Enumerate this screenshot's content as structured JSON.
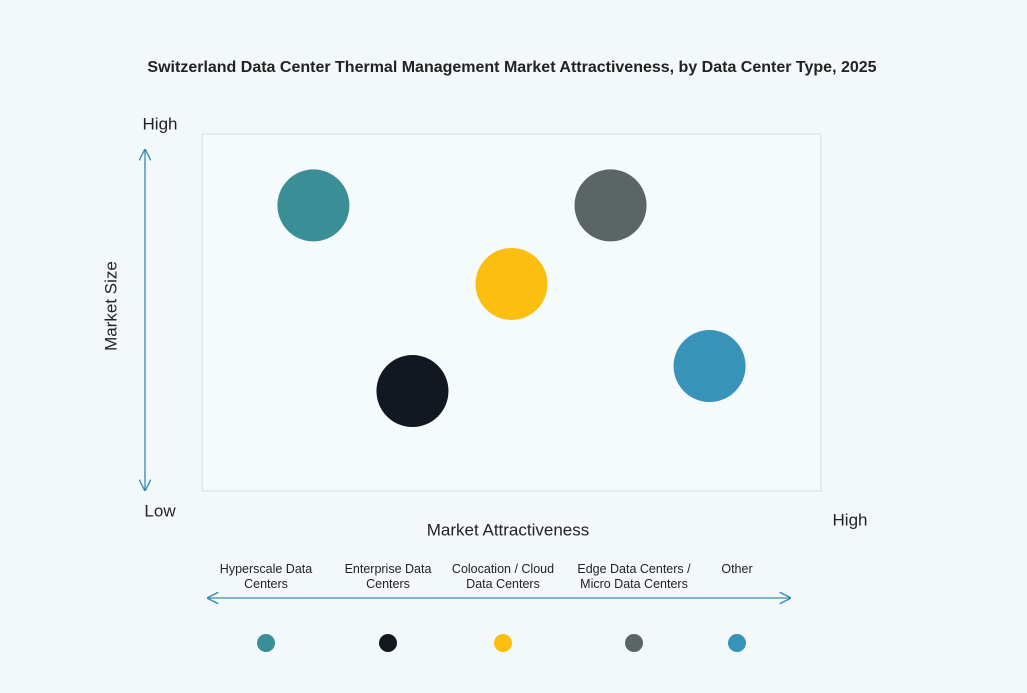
{
  "chart_data": {
    "type": "scatter",
    "title": "Switzerland Data Center Thermal Management Market Attractiveness,  by Data Center Type, 2025",
    "xlabel": "Market Attractiveness",
    "ylabel": "Market Size",
    "xlim": [
      0,
      10
    ],
    "ylim": [
      0,
      10
    ],
    "xticks": [
      {
        "value": 10,
        "label": "High"
      }
    ],
    "yticks": [
      {
        "value": 0,
        "label": "Low"
      },
      {
        "value": 10,
        "label": "High"
      }
    ],
    "series": [
      {
        "name": "Hyperscale Data Centers",
        "color": "#3a8e96",
        "x": [
          1.8
        ],
        "values": [
          8.0
        ]
      },
      {
        "name": "Enterprise Data Centers",
        "color": "#111820",
        "x": [
          3.4
        ],
        "values": [
          2.8
        ]
      },
      {
        "name": "Colocation / Cloud Data Centers",
        "color": "#fdbf0f",
        "x": [
          5.0
        ],
        "values": [
          5.8
        ]
      },
      {
        "name": "Edge Data Centers / Micro Data Centers",
        "color": "#5b6566",
        "x": [
          6.6
        ],
        "values": [
          8.0
        ]
      },
      {
        "name": "Other",
        "color": "#3793b8",
        "x": [
          8.2
        ],
        "values": [
          3.5
        ]
      }
    ]
  }
}
